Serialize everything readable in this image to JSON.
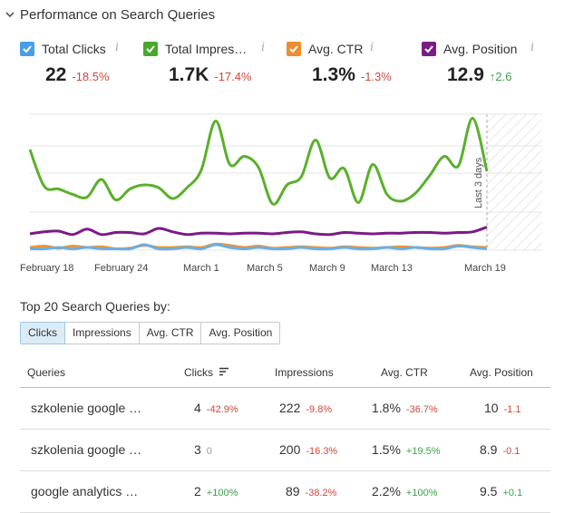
{
  "header": {
    "title": "Performance on Search Queries"
  },
  "metrics": [
    {
      "label": "Total Clicks",
      "value": "22",
      "change": "-18.5%",
      "trend": "neg",
      "color": "#4a9ee8"
    },
    {
      "label": "Total Impres…",
      "value": "1.7K",
      "change": "-17.4%",
      "trend": "neg",
      "color": "#49a82d"
    },
    {
      "label": "Avg. CTR",
      "value": "1.3%",
      "change": "-1.3%",
      "trend": "neg",
      "color": "#f08c2e"
    },
    {
      "label": "Avg. Position",
      "value": "12.9",
      "change": "↑2.6",
      "trend": "pos",
      "color": "#7a1c84"
    }
  ],
  "info_glyph": "i",
  "chart_data": {
    "type": "line",
    "x_labels": [
      "February 18",
      "February 24",
      "March 1",
      "March 5",
      "March 9",
      "March 13",
      "March 19"
    ],
    "annotation": "Last 3 days",
    "series": [
      {
        "name": "Total Impressions",
        "color": "#5ab02c",
        "values": [
          0.74,
          0.47,
          0.45,
          0.41,
          0.39,
          0.52,
          0.37,
          0.45,
          0.48,
          0.46,
          0.38,
          0.46,
          0.59,
          0.95,
          0.63,
          0.69,
          0.61,
          0.34,
          0.48,
          0.54,
          0.81,
          0.53,
          0.6,
          0.35,
          0.63,
          0.41,
          0.36,
          0.42,
          0.55,
          0.69,
          0.62,
          0.97,
          0.58
        ]
      },
      {
        "name": "Avg. Position",
        "color": "#7b1b86",
        "values": [
          0.12,
          0.135,
          0.14,
          0.115,
          0.155,
          0.115,
          0.13,
          0.13,
          0.12,
          0.16,
          0.135,
          0.115,
          0.125,
          0.125,
          0.12,
          0.125,
          0.125,
          0.12,
          0.13,
          0.135,
          0.12,
          0.115,
          0.13,
          0.125,
          0.12,
          0.125,
          0.125,
          0.13,
          0.13,
          0.125,
          0.13,
          0.135,
          0.17
        ]
      },
      {
        "name": "Total Clicks",
        "color": "#6aaee6",
        "values": [
          0.01,
          0.01,
          0.02,
          0.01,
          0.02,
          0.01,
          0.01,
          0.01,
          0.04,
          0.01,
          0.01,
          0.02,
          0.01,
          0.04,
          0.02,
          0.01,
          0.02,
          0.01,
          0.01,
          0.02,
          0.01,
          0.01,
          0.02,
          0.01,
          0.01,
          0.02,
          0.01,
          0.02,
          0.01,
          0.01,
          0.03,
          0.02,
          0.01
        ]
      },
      {
        "name": "Avg. CTR",
        "color": "#f0952f",
        "values": [
          0.02,
          0.03,
          0.015,
          0.03,
          0.02,
          0.025,
          0.01,
          0.015,
          0.035,
          0.02,
          0.02,
          0.025,
          0.02,
          0.045,
          0.035,
          0.02,
          0.03,
          0.015,
          0.02,
          0.025,
          0.02,
          0.015,
          0.025,
          0.02,
          0.015,
          0.02,
          0.025,
          0.02,
          0.015,
          0.02,
          0.035,
          0.025,
          0.02
        ]
      }
    ]
  },
  "queries_section": {
    "title": "Top 20 Search Queries by:",
    "tabs": [
      "Clicks",
      "Impressions",
      "Avg. CTR",
      "Avg. Position"
    ],
    "active_tab": "Clicks",
    "columns": [
      "Queries",
      "Clicks",
      "Impressions",
      "Avg. CTR",
      "Avg. Position"
    ],
    "rows": [
      {
        "query": "szkolenie google …",
        "clicks": "4",
        "clicks_chg": "-42.9%",
        "clicks_tr": "neg",
        "impr": "222",
        "impr_chg": "-9.8%",
        "impr_tr": "neg",
        "ctr": "1.8%",
        "ctr_chg": "-36.7%",
        "ctr_tr": "neg",
        "pos": "10",
        "pos_chg": "-1.1",
        "pos_tr": "neg"
      },
      {
        "query": "szkolenia google …",
        "clicks": "3",
        "clicks_chg": "0",
        "clicks_tr": "zero",
        "impr": "200",
        "impr_chg": "-16.3%",
        "impr_tr": "neg",
        "ctr": "1.5%",
        "ctr_chg": "+19.5%",
        "ctr_tr": "pos",
        "pos": "8.9",
        "pos_chg": "-0.1",
        "pos_tr": "neg"
      },
      {
        "query": "google analytics …",
        "clicks": "2",
        "clicks_chg": "+100%",
        "clicks_tr": "pos",
        "impr": "89",
        "impr_chg": "-38.2%",
        "impr_tr": "neg",
        "ctr": "2.2%",
        "ctr_chg": "+100%",
        "ctr_tr": "pos",
        "pos": "9.5",
        "pos_chg": "+0.1",
        "pos_tr": "pos"
      }
    ]
  }
}
